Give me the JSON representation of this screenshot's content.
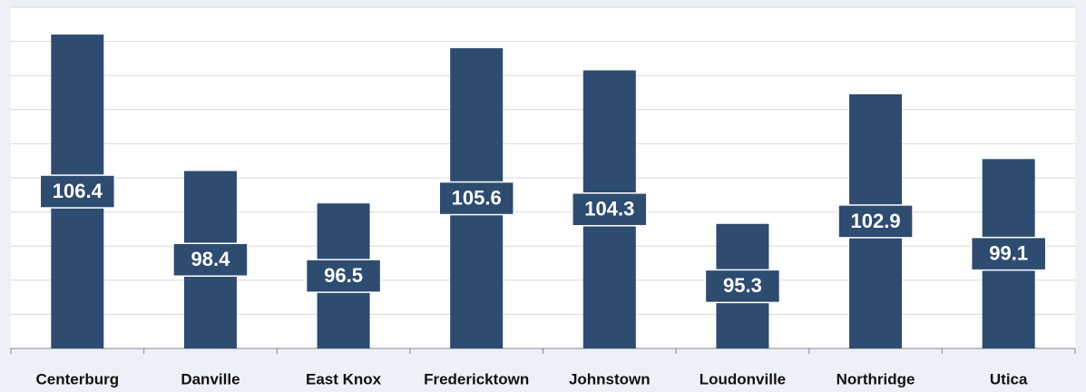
{
  "chart_data": {
    "type": "bar",
    "categories": [
      "Centerburg",
      "Danville",
      "East Knox",
      "Fredericktown",
      "Johnstown",
      "Loudonville",
      "Northridge",
      "Utica"
    ],
    "values": [
      106.4,
      98.4,
      96.5,
      105.6,
      104.3,
      95.3,
      102.9,
      99.1
    ],
    "color": "#2e4b70",
    "ylim": [
      88,
      108
    ],
    "yticks": [
      88,
      90,
      92,
      94,
      96,
      98,
      100,
      102,
      104,
      106,
      108
    ],
    "grid": true
  }
}
